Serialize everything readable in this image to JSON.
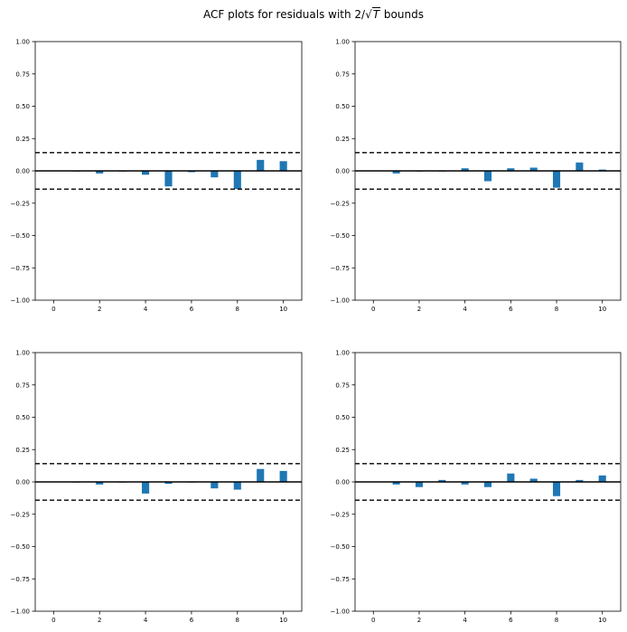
{
  "figure": {
    "title_prefix": "ACF plots for residuals with 2/",
    "title_sqrt": "T",
    "title_suffix": " bounds"
  },
  "style": {
    "bar_color": "#1f77b4",
    "zero_line_color": "#000000",
    "bound_line_color": "#000000"
  },
  "chart_data": [
    {
      "type": "bar",
      "panel": "top-left",
      "x": [
        1,
        2,
        3,
        4,
        5,
        6,
        7,
        8,
        9,
        10
      ],
      "values": [
        -0.005,
        -0.02,
        -0.005,
        -0.03,
        -0.12,
        -0.01,
        -0.05,
        -0.14,
        0.085,
        0.075
      ],
      "bounds": [
        0.141,
        -0.141
      ],
      "xlim": [
        -0.8,
        10.8
      ],
      "ylim": [
        -1.0,
        1.0
      ],
      "xticks": [
        "0",
        "2",
        "4",
        "6",
        "8",
        "10"
      ],
      "yticks": [
        "1.00",
        "0.75",
        "0.50",
        "0.25",
        "0.00",
        "−0.25",
        "−0.50",
        "−0.75",
        "−1.00"
      ],
      "grid": false
    },
    {
      "type": "bar",
      "panel": "top-right",
      "x": [
        1,
        2,
        3,
        4,
        5,
        6,
        7,
        8,
        9,
        10
      ],
      "values": [
        -0.02,
        -0.005,
        -0.005,
        0.02,
        -0.08,
        0.02,
        0.025,
        -0.13,
        0.065,
        0.01
      ],
      "bounds": [
        0.141,
        -0.141
      ],
      "xlim": [
        -0.8,
        10.8
      ],
      "ylim": [
        -1.0,
        1.0
      ],
      "xticks": [
        "0",
        "2",
        "4",
        "6",
        "8",
        "10"
      ],
      "yticks": [
        "1.00",
        "0.75",
        "0.50",
        "0.25",
        "0.00",
        "−0.25",
        "−0.50",
        "−0.75",
        "−1.00"
      ],
      "grid": false
    },
    {
      "type": "bar",
      "panel": "bottom-left",
      "x": [
        1,
        2,
        3,
        4,
        5,
        6,
        7,
        8,
        9,
        10
      ],
      "values": [
        -0.005,
        -0.02,
        -0.005,
        -0.09,
        -0.015,
        -0.005,
        -0.05,
        -0.06,
        0.1,
        0.085
      ],
      "bounds": [
        0.141,
        -0.141
      ],
      "xlim": [
        -0.8,
        10.8
      ],
      "ylim": [
        -1.0,
        1.0
      ],
      "xticks": [
        "0",
        "2",
        "4",
        "6",
        "8",
        "10"
      ],
      "yticks": [
        "1.00",
        "0.75",
        "0.50",
        "0.25",
        "0.00",
        "−0.25",
        "−0.50",
        "−0.75",
        "−1.00"
      ],
      "grid": false
    },
    {
      "type": "bar",
      "panel": "bottom-right",
      "x": [
        1,
        2,
        3,
        4,
        5,
        6,
        7,
        8,
        9,
        10
      ],
      "values": [
        -0.02,
        -0.04,
        0.015,
        -0.02,
        -0.04,
        0.065,
        0.025,
        -0.11,
        0.015,
        0.05
      ],
      "bounds": [
        0.141,
        -0.141
      ],
      "xlim": [
        -0.8,
        10.8
      ],
      "ylim": [
        -1.0,
        1.0
      ],
      "xticks": [
        "0",
        "2",
        "4",
        "6",
        "8",
        "10"
      ],
      "yticks": [
        "1.00",
        "0.75",
        "0.50",
        "0.25",
        "0.00",
        "−0.25",
        "−0.50",
        "−0.75",
        "−1.00"
      ],
      "grid": false
    }
  ]
}
